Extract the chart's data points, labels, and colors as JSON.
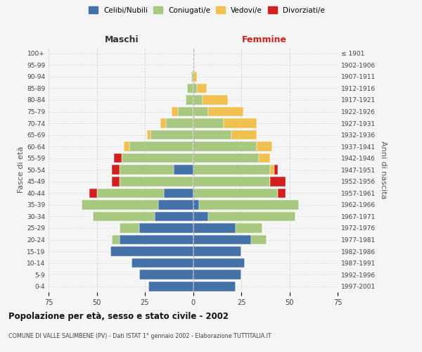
{
  "age_groups": [
    "0-4",
    "5-9",
    "10-14",
    "15-19",
    "20-24",
    "25-29",
    "30-34",
    "35-39",
    "40-44",
    "45-49",
    "50-54",
    "55-59",
    "60-64",
    "65-69",
    "70-74",
    "75-79",
    "80-84",
    "85-89",
    "90-94",
    "95-99",
    "100+"
  ],
  "birth_years": [
    "1997-2001",
    "1992-1996",
    "1987-1991",
    "1982-1986",
    "1977-1981",
    "1972-1976",
    "1967-1971",
    "1962-1966",
    "1957-1961",
    "1952-1956",
    "1947-1951",
    "1942-1946",
    "1937-1941",
    "1932-1936",
    "1927-1931",
    "1922-1926",
    "1917-1921",
    "1912-1916",
    "1907-1911",
    "1902-1906",
    "≤ 1901"
  ],
  "males": {
    "celibi": [
      23,
      28,
      32,
      43,
      38,
      28,
      20,
      18,
      15,
      0,
      10,
      0,
      0,
      0,
      0,
      0,
      0,
      0,
      0,
      0,
      0
    ],
    "coniugati": [
      0,
      0,
      0,
      0,
      4,
      10,
      32,
      40,
      35,
      38,
      28,
      37,
      33,
      22,
      14,
      8,
      4,
      3,
      1,
      0,
      0
    ],
    "vedovi": [
      0,
      0,
      0,
      0,
      0,
      0,
      0,
      0,
      0,
      0,
      0,
      0,
      3,
      2,
      3,
      3,
      0,
      0,
      0,
      0,
      0
    ],
    "divorziati": [
      0,
      0,
      0,
      0,
      0,
      0,
      0,
      0,
      4,
      4,
      4,
      4,
      0,
      0,
      0,
      0,
      0,
      0,
      0,
      0,
      0
    ]
  },
  "females": {
    "nubili": [
      22,
      25,
      27,
      25,
      30,
      22,
      8,
      3,
      0,
      0,
      0,
      0,
      0,
      0,
      0,
      0,
      0,
      0,
      0,
      0,
      0
    ],
    "coniugate": [
      0,
      0,
      0,
      0,
      8,
      14,
      45,
      52,
      44,
      40,
      40,
      34,
      33,
      20,
      16,
      8,
      5,
      2,
      0,
      0,
      0
    ],
    "vedove": [
      0,
      0,
      0,
      0,
      0,
      0,
      0,
      0,
      0,
      0,
      2,
      6,
      8,
      13,
      17,
      18,
      13,
      5,
      2,
      0,
      0
    ],
    "divorziate": [
      0,
      0,
      0,
      0,
      0,
      0,
      0,
      0,
      4,
      8,
      2,
      0,
      0,
      0,
      0,
      0,
      0,
      0,
      0,
      0,
      0
    ]
  },
  "colors": {
    "celibi": "#4472a8",
    "coniugati": "#a8c880",
    "vedovi": "#f0c050",
    "divorziati": "#d02020"
  },
  "xlim": 75,
  "title": "Popolazione per età, sesso e stato civile - 2002",
  "subtitle": "COMUNE DI VALLE SALIMBENE (PV) - Dati ISTAT 1° gennaio 2002 - Elaborazione TUTTITALIA.IT",
  "ylabel_left": "Fasce di età",
  "ylabel_right": "Anni di nascita",
  "xlabel_maschi": "Maschi",
  "xlabel_femmine": "Femmine",
  "bg_color": "#f5f5f5",
  "grid_color": "#cccccc"
}
